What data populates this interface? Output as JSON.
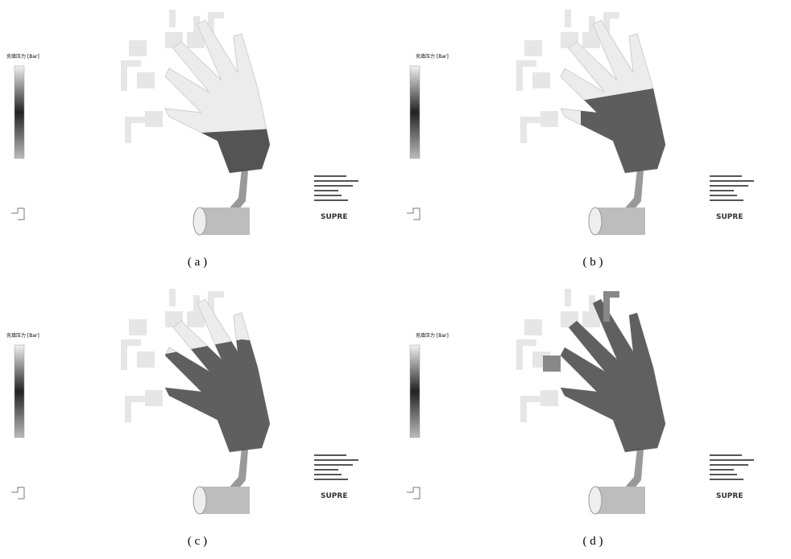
{
  "panels": [
    {
      "label": "( a )",
      "legend_title": "充填压力 [Bar]",
      "logo": "SUPRE"
    },
    {
      "label": "( b )",
      "legend_title": "充填压力 [Bar]",
      "logo": "SUPRE"
    },
    {
      "label": "( c )",
      "legend_title": "充填压力 [Bar]",
      "logo": "SUPRE"
    },
    {
      "label": "( d )",
      "legend_title": "充填压力 [Bar]",
      "logo": "SUPRE"
    }
  ]
}
